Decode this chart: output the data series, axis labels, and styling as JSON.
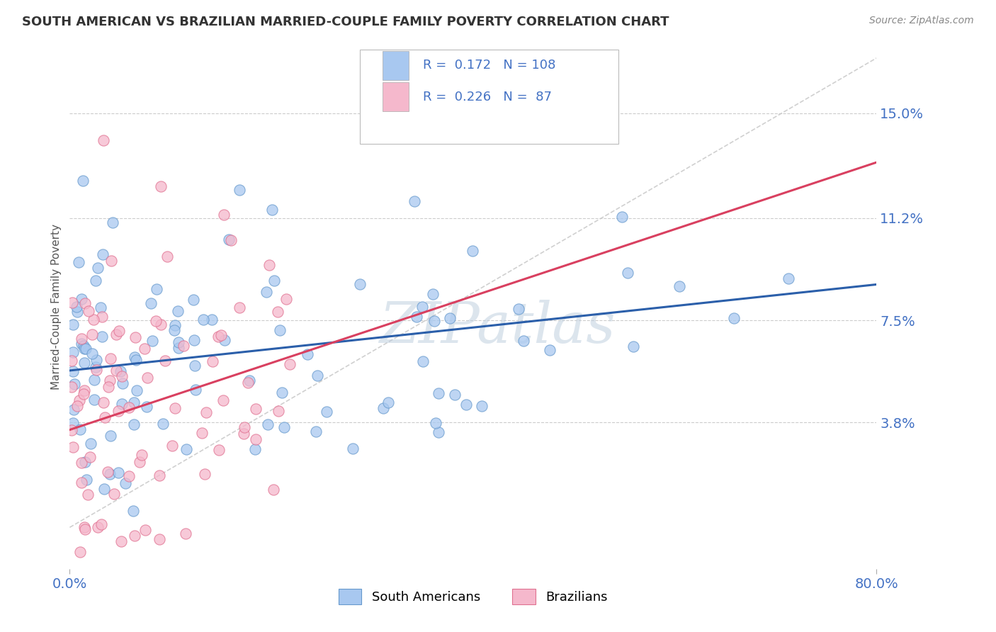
{
  "title": "SOUTH AMERICAN VS BRAZILIAN MARRIED-COUPLE FAMILY POVERTY CORRELATION CHART",
  "source": "Source: ZipAtlas.com",
  "ylabel": "Married-Couple Family Poverty",
  "xlim": [
    0,
    80
  ],
  "ylim": [
    -1.5,
    17.5
  ],
  "yticks": [
    3.8,
    7.5,
    11.2,
    15.0
  ],
  "xticks": [
    0,
    80
  ],
  "xtick_labels": [
    "0.0%",
    "80.0%"
  ],
  "ytick_labels": [
    "3.8%",
    "7.5%",
    "11.2%",
    "15.0%"
  ],
  "blue_color": "#A8C8F0",
  "pink_color": "#F5B8CC",
  "blue_edge_color": "#6699CC",
  "pink_edge_color": "#E07090",
  "blue_line_color": "#2B5FAA",
  "pink_line_color": "#D94060",
  "ref_line_color": "#C8C8C8",
  "title_color": "#333333",
  "axis_label_color": "#4472C4",
  "legend_R1": "0.172",
  "legend_N1": "108",
  "legend_R2": "0.226",
  "legend_N2": "87",
  "watermark": "ZIPatlas",
  "background_color": "#FFFFFF",
  "grid_color": "#CCCCCC",
  "blue_R": 0.172,
  "pink_R": 0.226,
  "seed": 42,
  "N_blue": 108,
  "N_pink": 87
}
